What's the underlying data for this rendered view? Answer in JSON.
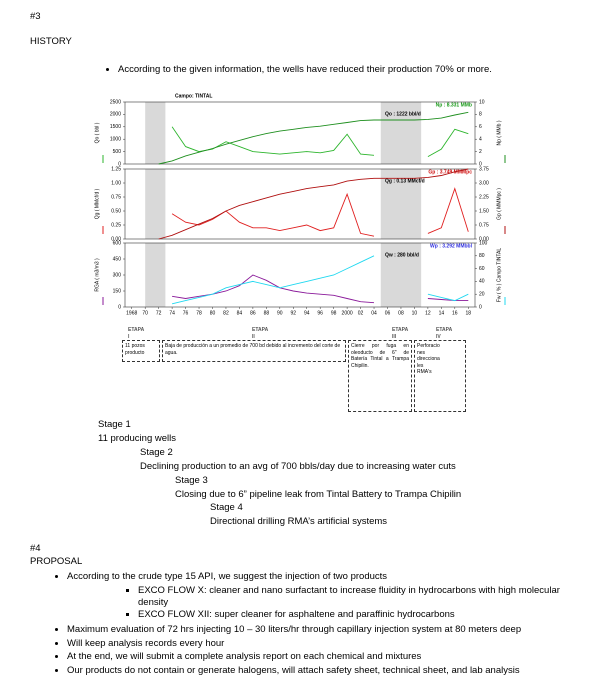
{
  "header": {
    "number": "#3",
    "title": "HISTORY"
  },
  "history_bullet": "According to the given information, the wells have reduced their production 70% or more.",
  "chart_data": {
    "type": "line",
    "title": "Campo: TINTAL",
    "xlim": [
      1967,
      2019
    ],
    "xticks": [
      1968,
      {
        "value": 1970,
        "label": "70"
      },
      {
        "value": 1972,
        "label": "72"
      },
      {
        "value": 1974,
        "label": "74"
      },
      {
        "value": 1976,
        "label": "76"
      },
      {
        "value": 1978,
        "label": "78"
      },
      {
        "value": 1980,
        "label": "80"
      },
      {
        "value": 1982,
        "label": "82"
      },
      {
        "value": 1984,
        "label": "84"
      },
      {
        "value": 1986,
        "label": "86"
      },
      {
        "value": 1988,
        "label": "88"
      },
      {
        "value": 1990,
        "label": "90"
      },
      {
        "value": 1992,
        "label": "92"
      },
      {
        "value": 1994,
        "label": "94"
      },
      {
        "value": 1996,
        "label": "96"
      },
      {
        "value": 1998,
        "label": "98"
      },
      2000,
      {
        "value": 2002,
        "label": "02"
      },
      {
        "value": 2004,
        "label": "04"
      },
      {
        "value": 2006,
        "label": "06"
      },
      {
        "value": 2008,
        "label": "08"
      },
      {
        "value": 2010,
        "label": "10"
      },
      {
        "value": 2012,
        "label": "12"
      },
      {
        "value": 2014,
        "label": "14"
      },
      {
        "value": 2016,
        "label": "16"
      },
      {
        "value": 2018,
        "label": "18"
      }
    ],
    "x": [
      1968,
      1970,
      1972,
      1974,
      1976,
      1978,
      1980,
      1982,
      1984,
      1986,
      1988,
      1990,
      1992,
      1994,
      1996,
      1998,
      2000,
      2002,
      2004,
      2006,
      2008,
      2010,
      2012,
      2014,
      2016,
      2018
    ],
    "shaded": [
      [
        1970,
        1973
      ],
      [
        2005,
        2011
      ]
    ],
    "panels": [
      {
        "ylabel": "Qo ( bbl )",
        "ylim": [
          0,
          2500
        ],
        "yticks": [
          0,
          500,
          1000,
          1500,
          2000,
          2500
        ],
        "y2label": "Np ( MMb )",
        "y2lim": [
          0,
          10
        ],
        "y2ticks": [
          0,
          2,
          4,
          6,
          8,
          10
        ],
        "annotations": [
          {
            "text": "Np : 8.331 MMb",
            "color": "#1a9a1a"
          },
          {
            "text": "Qo : 1222 bbl/d",
            "color": "#000000"
          }
        ],
        "series": [
          {
            "color": "#2db52d",
            "values": [
              null,
              null,
              null,
              1500,
              700,
              500,
              600,
              900,
              700,
              500,
              450,
              400,
              450,
              500,
              450,
              550,
              1200,
              400,
              350,
              null,
              null,
              null,
              300,
              600,
              1400,
              1222
            ]
          },
          {
            "color": "#1f8f1f",
            "axis": "y2",
            "values": [
              null,
              null,
              0,
              0.5,
              1.3,
              1.9,
              2.5,
              3.2,
              3.8,
              4.4,
              4.9,
              5.3,
              5.6,
              5.9,
              6.1,
              6.4,
              6.7,
              7.0,
              7.1,
              7.1,
              7.1,
              7.1,
              7.2,
              7.4,
              7.9,
              8.331
            ]
          }
        ]
      },
      {
        "ylabel": "Qg ( MMcf/d )",
        "ylim": [
          0,
          1.25
        ],
        "yticks": [
          {
            "value": 0,
            "label": "0.00"
          },
          {
            "value": 0.25,
            "label": "0.25"
          },
          {
            "value": 0.5,
            "label": "0.50"
          },
          {
            "value": 0.75,
            "label": "0.75"
          },
          {
            "value": 1,
            "label": "1.00"
          },
          {
            "value": 1.25,
            "label": "1.25"
          }
        ],
        "y2label": "Gp ( MMMpc )",
        "y2lim": [
          0,
          3.75
        ],
        "y2ticks": [
          {
            "value": 0,
            "label": "0.00"
          },
          {
            "value": 0.75,
            "label": "0.75"
          },
          {
            "value": 1.5,
            "label": "1.50"
          },
          {
            "value": 2.25,
            "label": "2.25"
          },
          {
            "value": 3,
            "label": "3.00"
          },
          {
            "value": 3.75,
            "label": "3.75"
          }
        ],
        "annotations": [
          {
            "text": "Gp : 3.749 MMMpc",
            "color": "#d01010"
          },
          {
            "text": "Qg : 0.13 MMcf/d",
            "color": "#000000"
          }
        ],
        "series": [
          {
            "color": "#e02020",
            "values": [
              null,
              null,
              null,
              0.45,
              0.3,
              0.25,
              0.35,
              0.5,
              0.3,
              0.2,
              0.2,
              0.15,
              0.2,
              0.25,
              0.15,
              0.2,
              0.8,
              0.1,
              0.05,
              null,
              null,
              null,
              0.1,
              0.2,
              0.9,
              0.13
            ]
          },
          {
            "color": "#b01010",
            "axis": "y2",
            "values": [
              null,
              null,
              0,
              0.2,
              0.5,
              0.8,
              1.1,
              1.5,
              1.8,
              2.0,
              2.2,
              2.4,
              2.55,
              2.7,
              2.8,
              2.9,
              3.1,
              3.2,
              3.25,
              3.25,
              3.25,
              3.25,
              3.3,
              3.4,
              3.6,
              3.749
            ]
          }
        ]
      },
      {
        "ylabel": "RGA ( m3/m3 )",
        "ylim": [
          0,
          600
        ],
        "yticks": [
          0,
          150,
          300,
          450,
          600
        ],
        "y2label": "Fw ( % ) Campo TINTAL",
        "y2lim": [
          0,
          100
        ],
        "y2ticks": [
          0,
          20,
          40,
          60,
          80,
          100
        ],
        "annotations": [
          {
            "text": "Wp : 3.292 MMbbl",
            "color": "#3030e0"
          },
          {
            "text": "Qw : 280 bbl/d",
            "color": "#000000"
          }
        ],
        "series": [
          {
            "color": "#8a1a9a",
            "values": [
              null,
              null,
              null,
              100,
              80,
              100,
              120,
              150,
              200,
              300,
              250,
              180,
              150,
              130,
              120,
              110,
              80,
              50,
              40,
              null,
              null,
              null,
              80,
              70,
              60,
              60
            ]
          },
          {
            "color": "#20d8f0",
            "axis": "y2",
            "values": [
              null,
              null,
              null,
              5,
              10,
              15,
              20,
              30,
              35,
              40,
              35,
              30,
              35,
              40,
              45,
              50,
              60,
              70,
              80,
              null,
              null,
              null,
              20,
              15,
              10,
              20
            ]
          }
        ]
      }
    ]
  },
  "etapas": [
    {
      "label": "ETAPA I",
      "text": "11 pozos producto"
    },
    {
      "label": "ETAPA II",
      "text": "Baja de producción a un promedio de 700 bd debido al incremento del corte de agua."
    },
    {
      "label": "ETAPA III",
      "text": "Cierre por fuga en oleoducto de 6\" de Batería Tintal a Trampa Chipilin."
    },
    {
      "label": "ETAPA IV",
      "text": "Perforacio nes direcciona les RMA's"
    }
  ],
  "stages": [
    {
      "title": "Stage 1",
      "text": "11 producing wells"
    },
    {
      "title": "Stage 2",
      "text": "Declining production to an avg of 700 bbls/day due to increasing water cuts"
    },
    {
      "title": "Stage 3",
      "text": "Closing due to 6” pipeline leak from Tintal Battery to Trampa Chipilin"
    },
    {
      "title": "Stage 4",
      "text": "Directional drilling RMA’s artificial systems"
    }
  ],
  "proposal": {
    "number": "#4",
    "title": "PROPOSAL",
    "intro": "According to the crude type 15 API, we suggest the injection of two products",
    "products": [
      "EXCO FLOW X: cleaner and nano surfactant to increase fluidity in hydrocarbons with high molecular density",
      "EXCO FLOW XII: super cleaner for asphaltene and paraffinic hydrocarbons"
    ],
    "bullets": [
      "Maximum evaluation of 72 hrs injecting 10 – 30 liters/hr through capillary injection system at 80 meters deep",
      "Will keep analysis records every hour",
      "At the end, we will submit a complete analysis report on each chemical and mixtures",
      "Our products do not contain or generate halogens, will attach safety sheet, technical sheet, and lab analysis"
    ]
  }
}
